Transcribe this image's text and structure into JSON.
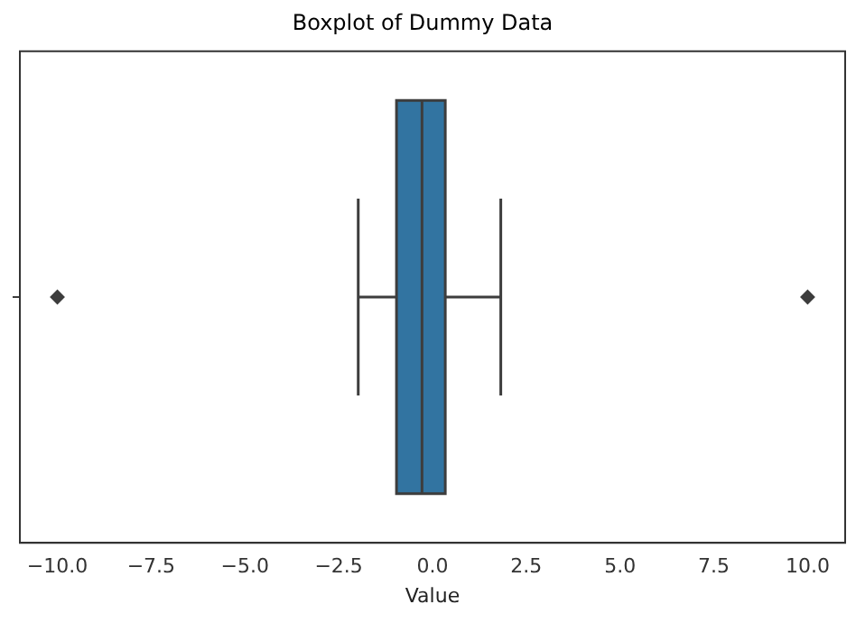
{
  "chart_data": {
    "type": "box",
    "title": "Boxplot of Dummy Data",
    "xlabel": "Value",
    "orientation": "horizontal",
    "categories": [
      null
    ],
    "color": "#3274a1",
    "boxes": [
      {
        "low": -1.98,
        "q1": -0.96,
        "median": -0.28,
        "q3": 0.34,
        "high": 1.82,
        "outliers": [
          -10,
          10
        ]
      }
    ],
    "xlim": [
      -11,
      11
    ],
    "xticks": [
      {
        "value": -10,
        "label": "−10.0"
      },
      {
        "value": -7.5,
        "label": "−7.5"
      },
      {
        "value": -5,
        "label": "−5.0"
      },
      {
        "value": -2.5,
        "label": "−2.5"
      },
      {
        "value": 0,
        "label": "0.0"
      },
      {
        "value": 2.5,
        "label": "2.5"
      },
      {
        "value": 5,
        "label": "5.0"
      },
      {
        "value": 7.5,
        "label": "7.5"
      },
      {
        "value": 10,
        "label": "10.0"
      }
    ],
    "tick_labels": "x",
    "grid": false,
    "legend": false
  }
}
